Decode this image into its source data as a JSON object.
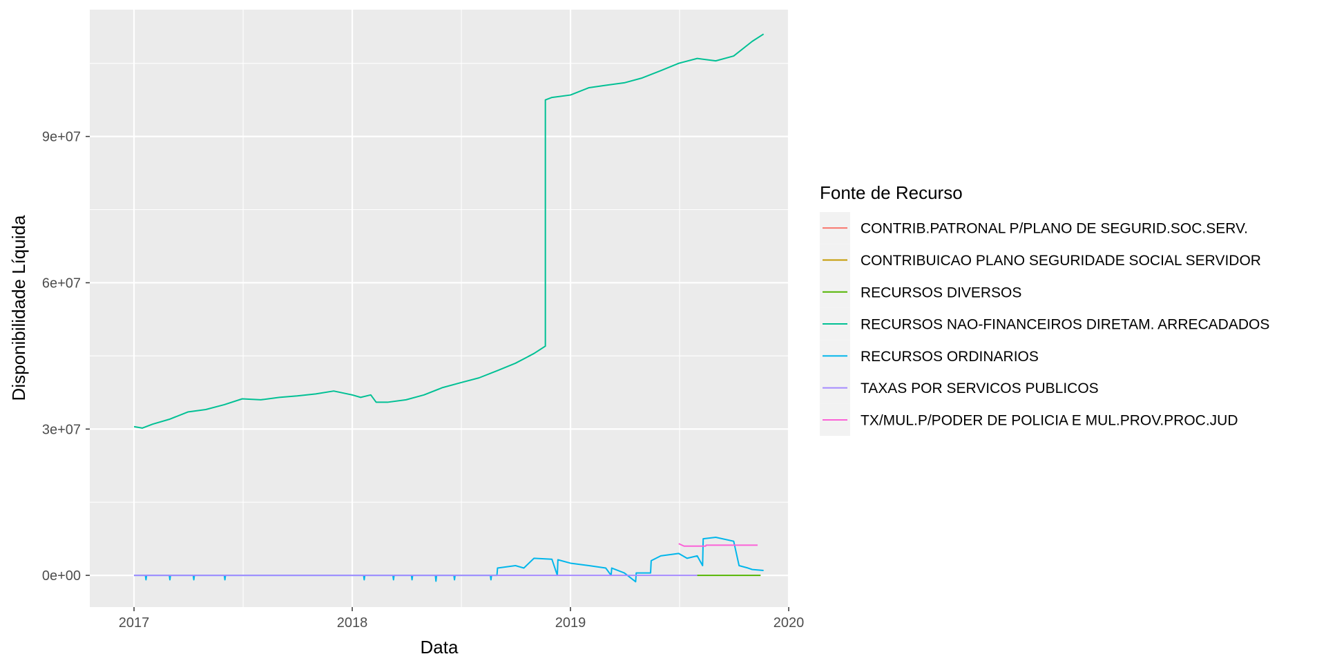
{
  "chart_data": {
    "type": "line",
    "title": "",
    "xlabel": "Data",
    "ylabel": "Disponibilidade Líquida",
    "xlim": [
      "2016-10-19",
      "2020-01-01"
    ],
    "ylim": [
      -6500000,
      116000000
    ],
    "x_ticks": [
      {
        "date": "2017-01-01",
        "label": "2017"
      },
      {
        "date": "2018-01-01",
        "label": "2018"
      },
      {
        "date": "2019-01-01",
        "label": "2019"
      },
      {
        "date": "2020-01-01",
        "label": "2020"
      }
    ],
    "y_ticks": [
      {
        "value": 0,
        "label": "0e+00"
      },
      {
        "value": 30000000,
        "label": "3e+07"
      },
      {
        "value": 60000000,
        "label": "6e+07"
      },
      {
        "value": 90000000,
        "label": "9e+07"
      }
    ],
    "grid": true,
    "legend": {
      "title": "Fonte de Recurso",
      "position": "right"
    },
    "series": [
      {
        "name": "CONTRIB.PATRONAL P/PLANO DE SEGURID.SOC.SERV.",
        "color": "#F8766D",
        "points": []
      },
      {
        "name": "CONTRIBUICAO PLANO SEGURIDADE SOCIAL SERVIDOR",
        "color": "#C49A00",
        "points": []
      },
      {
        "name": "RECURSOS DIVERSOS",
        "color": "#53B400",
        "points": [
          [
            "2019-08-01",
            0
          ],
          [
            "2019-11-15",
            0
          ]
        ]
      },
      {
        "name": "RECURSOS NAO-FINANCEIROS DIRETAM. ARRECADADOS",
        "color": "#00C094",
        "points": [
          [
            "2017-01-01",
            30500000
          ],
          [
            "2017-01-15",
            30200000
          ],
          [
            "2017-02-01",
            31000000
          ],
          [
            "2017-03-01",
            32000000
          ],
          [
            "2017-04-01",
            33500000
          ],
          [
            "2017-05-01",
            34000000
          ],
          [
            "2017-06-01",
            35000000
          ],
          [
            "2017-07-01",
            36200000
          ],
          [
            "2017-08-01",
            36000000
          ],
          [
            "2017-09-01",
            36500000
          ],
          [
            "2017-10-01",
            36800000
          ],
          [
            "2017-11-01",
            37200000
          ],
          [
            "2017-12-01",
            37800000
          ],
          [
            "2018-01-01",
            37000000
          ],
          [
            "2018-01-15",
            36500000
          ],
          [
            "2018-02-01",
            37000000
          ],
          [
            "2018-02-10",
            35500000
          ],
          [
            "2018-03-01",
            35500000
          ],
          [
            "2018-04-01",
            36000000
          ],
          [
            "2018-05-01",
            37000000
          ],
          [
            "2018-06-01",
            38500000
          ],
          [
            "2018-07-01",
            39500000
          ],
          [
            "2018-08-01",
            40500000
          ],
          [
            "2018-09-01",
            42000000
          ],
          [
            "2018-10-01",
            43500000
          ],
          [
            "2018-11-01",
            45500000
          ],
          [
            "2018-11-20",
            47000000
          ],
          [
            "2018-11-20",
            97500000
          ],
          [
            "2018-12-01",
            98000000
          ],
          [
            "2019-01-01",
            98500000
          ],
          [
            "2019-02-01",
            100000000
          ],
          [
            "2019-03-01",
            100500000
          ],
          [
            "2019-04-01",
            101000000
          ],
          [
            "2019-05-01",
            102000000
          ],
          [
            "2019-06-01",
            103500000
          ],
          [
            "2019-07-01",
            105000000
          ],
          [
            "2019-08-01",
            106000000
          ],
          [
            "2019-09-01",
            105500000
          ],
          [
            "2019-10-01",
            106500000
          ],
          [
            "2019-11-01",
            109500000
          ],
          [
            "2019-11-20",
            111000000
          ]
        ]
      },
      {
        "name": "RECURSOS ORDINARIOS",
        "color": "#00B6EB",
        "points": [
          [
            "2017-01-01",
            0
          ],
          [
            "2017-01-20",
            0
          ],
          [
            "2017-01-21",
            -900000
          ],
          [
            "2017-01-22",
            0
          ],
          [
            "2017-03-01",
            0
          ],
          [
            "2017-03-02",
            -900000
          ],
          [
            "2017-03-03",
            0
          ],
          [
            "2017-04-10",
            0
          ],
          [
            "2017-04-11",
            -900000
          ],
          [
            "2017-04-12",
            0
          ],
          [
            "2017-06-01",
            0
          ],
          [
            "2017-06-02",
            -900000
          ],
          [
            "2017-06-03",
            0
          ],
          [
            "2018-01-20",
            0
          ],
          [
            "2018-01-21",
            -900000
          ],
          [
            "2018-01-22",
            0
          ],
          [
            "2018-03-10",
            0
          ],
          [
            "2018-03-11",
            -900000
          ],
          [
            "2018-03-12",
            0
          ],
          [
            "2018-04-10",
            0
          ],
          [
            "2018-04-11",
            -900000
          ],
          [
            "2018-04-12",
            0
          ],
          [
            "2018-05-20",
            0
          ],
          [
            "2018-05-21",
            -1200000
          ],
          [
            "2018-05-22",
            0
          ],
          [
            "2018-06-20",
            0
          ],
          [
            "2018-06-21",
            -900000
          ],
          [
            "2018-06-22",
            0
          ],
          [
            "2018-08-20",
            0
          ],
          [
            "2018-08-21",
            -900000
          ],
          [
            "2018-08-22",
            0
          ],
          [
            "2018-08-31",
            0
          ],
          [
            "2018-09-01",
            1500000
          ],
          [
            "2018-10-01",
            2000000
          ],
          [
            "2018-10-15",
            1500000
          ],
          [
            "2018-11-01",
            3500000
          ],
          [
            "2018-12-01",
            3300000
          ],
          [
            "2018-12-10",
            0
          ],
          [
            "2018-12-11",
            3200000
          ],
          [
            "2019-01-01",
            2500000
          ],
          [
            "2019-02-01",
            2000000
          ],
          [
            "2019-03-01",
            1500000
          ],
          [
            "2019-03-10",
            0
          ],
          [
            "2019-03-11",
            1500000
          ],
          [
            "2019-04-01",
            500000
          ],
          [
            "2019-04-20",
            -1300000
          ],
          [
            "2019-04-21",
            500000
          ],
          [
            "2019-05-15",
            500000
          ],
          [
            "2019-05-16",
            3000000
          ],
          [
            "2019-06-01",
            4000000
          ],
          [
            "2019-07-01",
            4500000
          ],
          [
            "2019-07-15",
            3500000
          ],
          [
            "2019-08-01",
            4000000
          ],
          [
            "2019-08-10",
            2000000
          ],
          [
            "2019-08-11",
            7500000
          ],
          [
            "2019-09-01",
            7800000
          ],
          [
            "2019-10-01",
            7000000
          ],
          [
            "2019-10-10",
            2000000
          ],
          [
            "2019-10-25",
            1500000
          ],
          [
            "2019-11-01",
            1200000
          ],
          [
            "2019-11-20",
            1000000
          ]
        ]
      },
      {
        "name": "TAXAS POR SERVICOS PUBLICOS",
        "color": "#A58AFF",
        "points": [
          [
            "2017-01-01",
            0
          ],
          [
            "2019-08-01",
            0
          ]
        ]
      },
      {
        "name": "TX/MUL.P/PODER DE POLICIA E MUL.PROV.PROC.JUD",
        "color": "#FB61D7",
        "points": [
          [
            "2019-07-01",
            6500000
          ],
          [
            "2019-07-10",
            6000000
          ],
          [
            "2019-08-15",
            6000000
          ],
          [
            "2019-08-16",
            6200000
          ],
          [
            "2019-11-10",
            6200000
          ]
        ]
      }
    ]
  }
}
